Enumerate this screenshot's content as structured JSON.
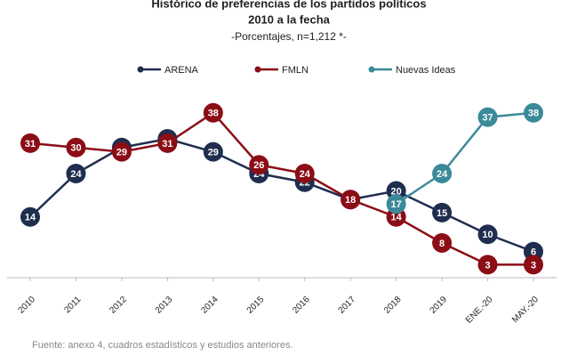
{
  "chart_data": {
    "type": "line",
    "title": "Histórico de preferencias de los partidos políticos",
    "subtitle": "2010 a la fecha",
    "note": "-Porcentajes, n=1,212 *-",
    "source": "Fuente: anexo 4, cuadros estadísticos y estudios anteriores.",
    "categories": [
      "2010",
      "2011",
      "2012",
      "2013",
      "2014",
      "2015",
      "2016",
      "2017",
      "2018",
      "2019",
      "ENE.-20",
      "MAY.-20"
    ],
    "series": [
      {
        "name": "ARENA",
        "color": "#1f2d4f",
        "values": [
          14,
          24,
          30,
          32,
          29,
          24,
          22,
          18,
          20,
          15,
          10,
          6
        ]
      },
      {
        "name": "FMLN",
        "color": "#8b0d16",
        "values": [
          31,
          30,
          29,
          31,
          38,
          26,
          24,
          18,
          14,
          8,
          3,
          3
        ]
      },
      {
        "name": "Nuevas Ideas",
        "color": "#3a8a99",
        "values": [
          null,
          null,
          null,
          null,
          null,
          null,
          null,
          null,
          17,
          24,
          37,
          38
        ]
      }
    ],
    "ylim": [
      0,
      40
    ],
    "legend": "top"
  }
}
